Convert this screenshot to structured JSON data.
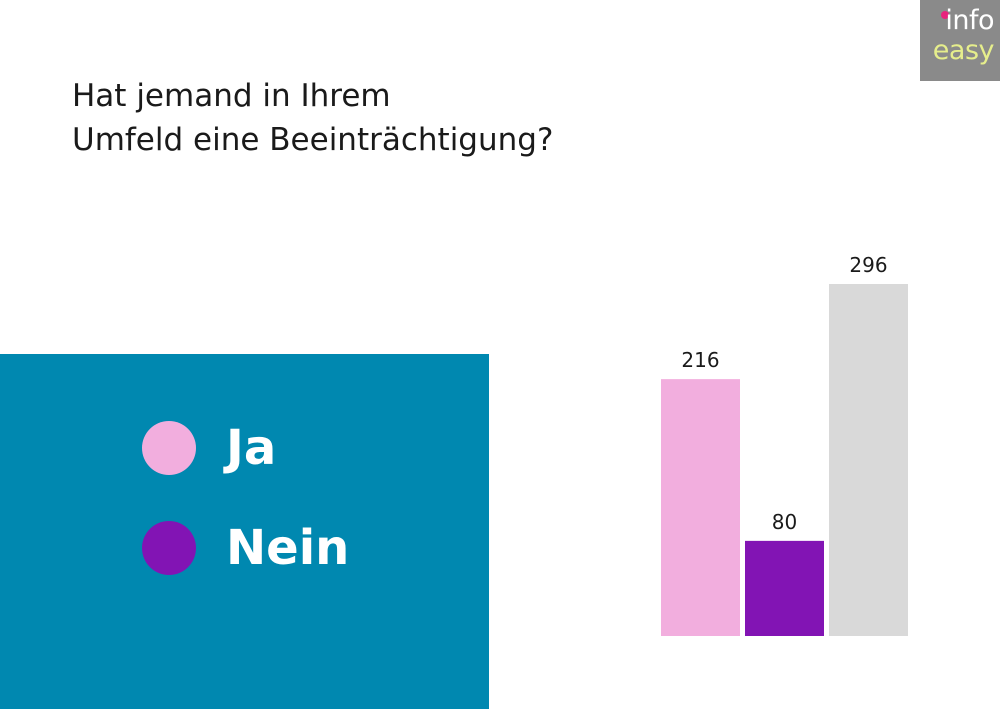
{
  "logo": {
    "line1": "info",
    "line2": "easy"
  },
  "title_lines": [
    "Hat jemand in Ihrem",
    "Umfeld eine Beeinträchtigung?"
  ],
  "legend": [
    {
      "label": "Ja",
      "color": "#f2aede"
    },
    {
      "label": "Nein",
      "color": "#8214b4"
    }
  ],
  "chart_data": {
    "type": "bar",
    "categories": [
      "Ja",
      "Nein",
      ""
    ],
    "values": [
      216,
      80,
      296
    ],
    "colors": [
      "#f2aede",
      "#8214b4",
      "#d9d9d9"
    ],
    "data_labels": [
      "216",
      "80",
      "296"
    ],
    "ylim": [
      0,
      296
    ],
    "grid": false
  }
}
